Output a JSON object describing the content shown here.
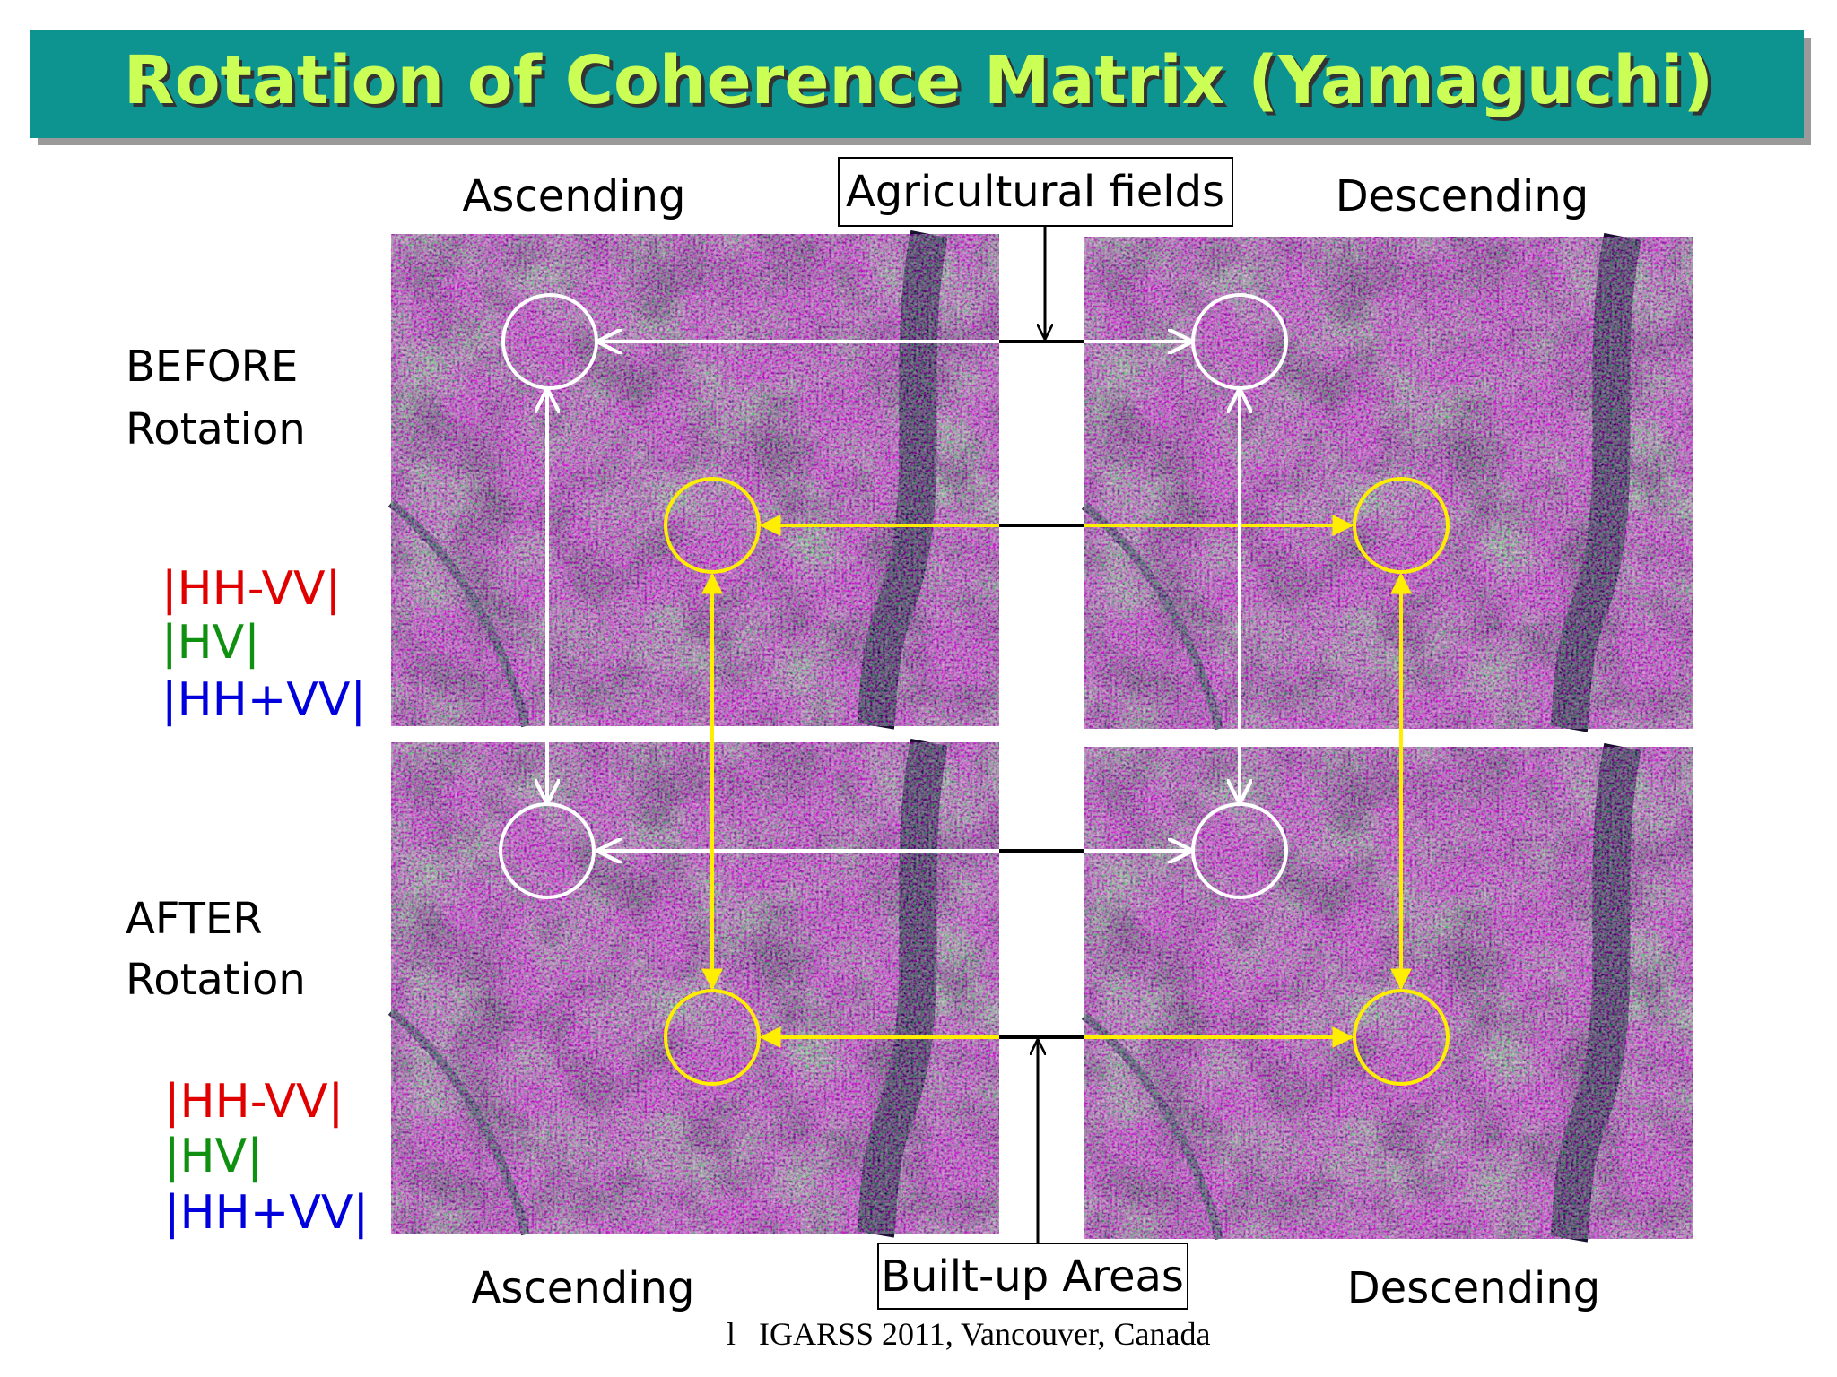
{
  "title": "Rotation of Coherence Matrix (Yamaguchi)",
  "top_labels": {
    "left": "Ascending",
    "center": "Agricultural fields",
    "right": "Descending"
  },
  "bottom_labels": {
    "left": "Ascending",
    "center": "Built-up Areas",
    "right": "Descending"
  },
  "rows": [
    {
      "label_line1": "BEFORE",
      "label_line2": "Rotation",
      "legend": [
        "|HH-VV|",
        "|HV|",
        "|HH+VV|"
      ]
    },
    {
      "label_line1": "AFTER",
      "label_line2": "Rotation",
      "legend": [
        "|HH-VV|",
        "|HV|",
        "|HH+VV|"
      ]
    }
  ],
  "footer": {
    "page_number": "l",
    "text": "IGARSS 2011, Vancouver, Canada"
  }
}
